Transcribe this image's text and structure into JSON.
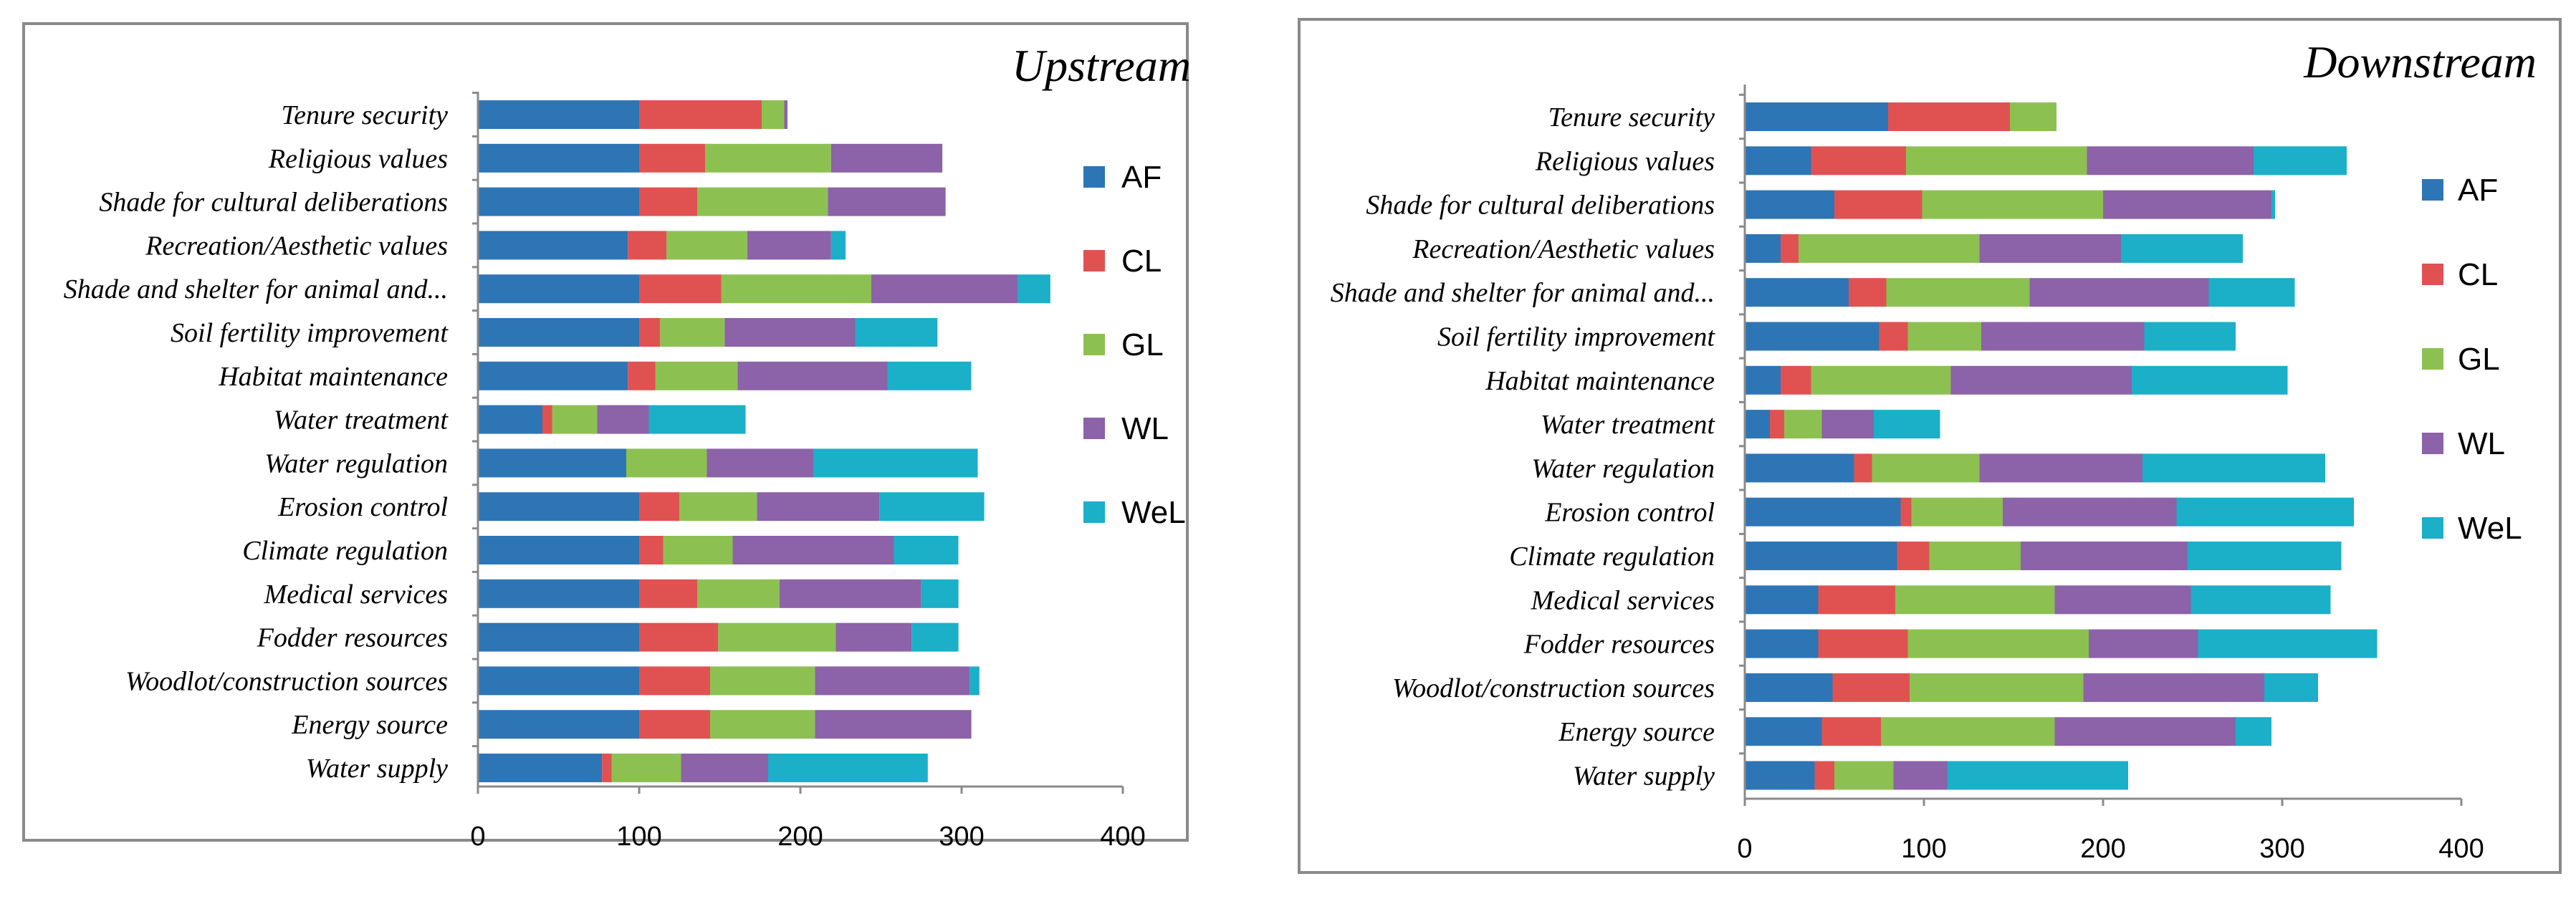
{
  "chart_data": [
    {
      "type": "bar",
      "orientation": "horizontal",
      "stacked": true,
      "title": "Upstream",
      "xlabel": "",
      "ylabel": "",
      "xlim": [
        0,
        400
      ],
      "xticks": [
        "0",
        "100",
        "200",
        "300",
        "400"
      ],
      "grid": false,
      "legend_position": "right",
      "categories": [
        "Tenure security",
        "Religious values",
        "Shade for cultural deliberations",
        "Recreation/Aesthetic values",
        "Shade and shelter for animal and...",
        "Soil fertility improvement",
        "Habitat maintenance",
        "Water treatment",
        "Water regulation",
        "Erosion control",
        "Climate regulation",
        "Medical services",
        "Fodder resources",
        "Woodlot/construction sources",
        "Energy source",
        "Water supply"
      ],
      "series": [
        {
          "name": "AF",
          "color": "#2E75B6",
          "values": [
            100,
            100,
            100,
            93,
            100,
            100,
            93,
            40,
            92,
            100,
            100,
            100,
            100,
            100,
            100,
            77
          ]
        },
        {
          "name": "CL",
          "color": "#E05252",
          "values": [
            76,
            41,
            36,
            24,
            51,
            13,
            17,
            6,
            0,
            25,
            15,
            36,
            49,
            44,
            44,
            6
          ]
        },
        {
          "name": "GL",
          "color": "#8CC152",
          "values": [
            14,
            78,
            81,
            50,
            93,
            40,
            51,
            28,
            50,
            48,
            43,
            51,
            73,
            65,
            65,
            43
          ]
        },
        {
          "name": "WL",
          "color": "#8C62A8",
          "values": [
            2,
            69,
            73,
            52,
            91,
            81,
            93,
            32,
            66,
            76,
            100,
            88,
            47,
            96,
            97,
            54
          ]
        },
        {
          "name": "WeL",
          "color": "#1BAFC8",
          "values": [
            0,
            0,
            0,
            9,
            20,
            51,
            52,
            60,
            102,
            65,
            40,
            23,
            29,
            6,
            0,
            99
          ]
        }
      ]
    },
    {
      "type": "bar",
      "orientation": "horizontal",
      "stacked": true,
      "title": "Downstream",
      "xlabel": "",
      "ylabel": "",
      "xlim": [
        0,
        400
      ],
      "xticks": [
        "0",
        "100",
        "200",
        "300",
        "400"
      ],
      "grid": false,
      "legend_position": "right",
      "categories": [
        "Tenure security",
        "Religious values",
        "Shade for cultural deliberations",
        "Recreation/Aesthetic values",
        "Shade and shelter for animal and...",
        "Soil fertility improvement",
        "Habitat maintenance",
        "Water treatment",
        "Water regulation",
        "Erosion control",
        "Climate regulation",
        "Medical services",
        "Fodder resources",
        "Woodlot/construction sources",
        "Energy source",
        "Water supply"
      ],
      "series": [
        {
          "name": "AF",
          "color": "#2E75B6",
          "values": [
            80,
            37,
            50,
            20,
            58,
            75,
            20,
            14,
            61,
            87,
            85,
            41,
            41,
            49,
            43,
            39
          ]
        },
        {
          "name": "CL",
          "color": "#E05252",
          "values": [
            68,
            53,
            49,
            10,
            21,
            16,
            17,
            8,
            10,
            6,
            18,
            43,
            50,
            43,
            33,
            11
          ]
        },
        {
          "name": "GL",
          "color": "#8CC152",
          "values": [
            26,
            101,
            101,
            101,
            80,
            41,
            78,
            21,
            60,
            51,
            51,
            89,
            101,
            97,
            97,
            33
          ]
        },
        {
          "name": "WL",
          "color": "#8C62A8",
          "values": [
            0,
            93,
            94,
            79,
            100,
            91,
            101,
            29,
            91,
            97,
            93,
            76,
            61,
            101,
            101,
            30
          ]
        },
        {
          "name": "WeL",
          "color": "#1BAFC8",
          "values": [
            0,
            52,
            2,
            68,
            48,
            51,
            87,
            37,
            102,
            99,
            86,
            78,
            100,
            30,
            20,
            101
          ]
        }
      ]
    }
  ]
}
